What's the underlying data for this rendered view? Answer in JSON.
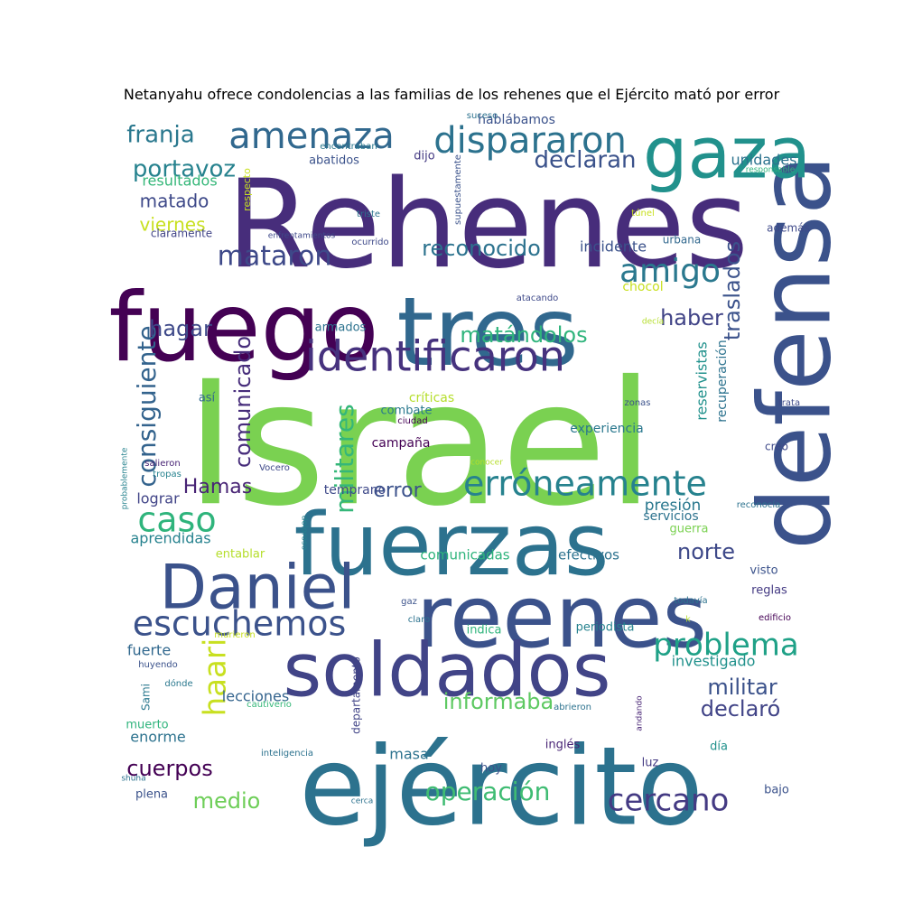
{
  "title": "Netanyahu ofrece condolencias a las familias de los rehenes que el Ejército mató por error",
  "words": [
    {
      "text": "Israel",
      "color": "#7ad151",
      "weight": 100
    },
    {
      "text": "Rehenes",
      "color": "#472d7b",
      "weight": 94
    },
    {
      "text": "ejército",
      "color": "#2c728e",
      "weight": 82
    },
    {
      "text": "defensa",
      "color": "#3b528b",
      "weight": 78
    },
    {
      "text": "fuego",
      "color": "#440154",
      "weight": 75
    },
    {
      "text": "tres",
      "color": "#31688e",
      "weight": 72
    },
    {
      "text": "fuerzas",
      "color": "#2c728e",
      "weight": 70
    },
    {
      "text": "reenes",
      "color": "#3b528b",
      "weight": 68
    },
    {
      "text": "soldados",
      "color": "#414487",
      "weight": 66
    },
    {
      "text": "gaza",
      "color": "#21918c",
      "weight": 58
    },
    {
      "text": "Daniel",
      "color": "#3b528b",
      "weight": 56
    },
    {
      "text": "identificaron",
      "color": "#46327e",
      "weight": 44
    },
    {
      "text": "dispararon",
      "color": "#2c728e",
      "weight": 38
    },
    {
      "text": "amenaza",
      "color": "#31688e",
      "weight": 36
    },
    {
      "text": "erróneamente",
      "color": "#26828e",
      "weight": 36
    },
    {
      "text": "escuchemos",
      "color": "#3b528b",
      "weight": 34
    },
    {
      "text": "amigo",
      "color": "#2a788e",
      "weight": 32
    },
    {
      "text": "problema",
      "color": "#1fa187",
      "weight": 31
    },
    {
      "text": "caso",
      "color": "#2fb47c",
      "weight": 31
    },
    {
      "text": "cercano",
      "color": "#443a83",
      "weight": 30
    },
    {
      "text": "haari",
      "color": "#c8e020",
      "weight": 30
    },
    {
      "text": "mataron",
      "color": "#3e4989",
      "weight": 28
    },
    {
      "text": "operación",
      "color": "#3fbc73",
      "weight": 26
    },
    {
      "text": "militares",
      "color": "#35b779",
      "weight": 26
    },
    {
      "text": "consiguiente",
      "color": "#33638d",
      "weight": 26
    },
    {
      "text": "franja",
      "color": "#2a788e",
      "weight": 26
    },
    {
      "text": "portavoz",
      "color": "#26828e",
      "weight": 26
    },
    {
      "text": "declaran",
      "color": "#3b528b",
      "weight": 25
    },
    {
      "text": "reconocido",
      "color": "#2c728e",
      "weight": 25
    },
    {
      "text": "haber",
      "color": "#414487",
      "weight": 24
    },
    {
      "text": "matándolos",
      "color": "#2fb47c",
      "weight": 23
    },
    {
      "text": "hagar",
      "color": "#3e4989",
      "weight": 23
    },
    {
      "text": "comunicado",
      "color": "#472d7b",
      "weight": 23
    },
    {
      "text": "norte",
      "color": "#3e4989",
      "weight": 23
    },
    {
      "text": "traslados",
      "color": "#3b528b",
      "weight": 23
    },
    {
      "text": "militar",
      "color": "#3b528b",
      "weight": 22
    },
    {
      "text": "informaba",
      "color": "#5ec962",
      "weight": 22
    },
    {
      "text": "declaró",
      "color": "#414487",
      "weight": 22
    },
    {
      "text": "cuerpos",
      "color": "#440154",
      "weight": 22
    },
    {
      "text": "medio",
      "color": "#6ece58",
      "weight": 22
    },
    {
      "text": "Hamas",
      "color": "#482475",
      "weight": 21
    },
    {
      "text": "error",
      "color": "#3b528b",
      "weight": 21
    },
    {
      "text": "matado",
      "color": "#3e4989",
      "weight": 20
    },
    {
      "text": "viernes",
      "color": "#c8e020",
      "weight": 20
    },
    {
      "text": "presión",
      "color": "#2a788e",
      "weight": 18
    },
    {
      "text": "lograr",
      "color": "#414487",
      "weight": 17
    },
    {
      "text": "resultados",
      "color": "#35b779",
      "weight": 17
    },
    {
      "text": "incidente",
      "color": "#3b528b",
      "weight": 17
    },
    {
      "text": "unidades",
      "color": "#2c728e",
      "weight": 17
    },
    {
      "text": "aprendidas",
      "color": "#26828e",
      "weight": 17
    },
    {
      "text": "investigado",
      "color": "#21918c",
      "weight": 17
    },
    {
      "text": "fuerte",
      "color": "#31688e",
      "weight": 16
    },
    {
      "text": "lecciones",
      "color": "#33638d",
      "weight": 16
    },
    {
      "text": "reservistas",
      "color": "#21918c",
      "weight": 16
    },
    {
      "text": "recuperación",
      "color": "#2c728e",
      "weight": 15
    },
    {
      "text": "masa",
      "color": "#2c728e",
      "weight": 16
    },
    {
      "text": "enorme",
      "color": "#2c728e",
      "weight": 16
    },
    {
      "text": "comunicadas",
      "color": "#2fb47c",
      "weight": 15
    },
    {
      "text": "efectivos",
      "color": "#2c728e",
      "weight": 15
    },
    {
      "text": "experiencia",
      "color": "#2a788e",
      "weight": 14
    },
    {
      "text": "hablábamos",
      "color": "#3b528b",
      "weight": 14
    },
    {
      "text": "temprano",
      "color": "#3e4989",
      "weight": 14
    },
    {
      "text": "chocol",
      "color": "#c8e020",
      "weight": 14
    },
    {
      "text": "críticas",
      "color": "#b5de2b",
      "weight": 14
    },
    {
      "text": "campaña",
      "color": "#440154",
      "weight": 14
    },
    {
      "text": "servicios",
      "color": "#2c728e",
      "weight": 14
    },
    {
      "text": "guerra",
      "color": "#7ad151",
      "weight": 13
    },
    {
      "text": "entablar",
      "color": "#b5de2b",
      "weight": 13
    },
    {
      "text": "reglas",
      "color": "#443a83",
      "weight": 13
    },
    {
      "text": "periodista",
      "color": "#26828e",
      "weight": 13
    },
    {
      "text": "indica",
      "color": "#2fb47c",
      "weight": 13
    },
    {
      "text": "hoy",
      "color": "#3b528b",
      "weight": 13
    },
    {
      "text": "plena",
      "color": "#3b528b",
      "weight": 13
    },
    {
      "text": "bajo",
      "color": "#3b528b",
      "weight": 13
    },
    {
      "text": "luz",
      "color": "#443a83",
      "weight": 13
    },
    {
      "text": "inglés",
      "color": "#482475",
      "weight": 13
    },
    {
      "text": "día",
      "color": "#21918c",
      "weight": 13
    },
    {
      "text": "visto",
      "color": "#3b528b",
      "weight": 13
    },
    {
      "text": "muerto",
      "color": "#2fb47c",
      "weight": 13
    },
    {
      "text": "armados",
      "color": "#2c728e",
      "weight": 12
    },
    {
      "text": "combate",
      "color": "#2a788e",
      "weight": 12
    },
    {
      "text": "dijo",
      "color": "#443a83",
      "weight": 13
    },
    {
      "text": "abatidos",
      "color": "#3b528b",
      "weight": 12
    },
    {
      "text": "claramente",
      "color": "#414487",
      "weight": 12
    },
    {
      "text": "así",
      "color": "#31688e",
      "weight": 12
    },
    {
      "text": "creo",
      "color": "#3e4989",
      "weight": 12
    },
    {
      "text": "además",
      "color": "#3e4989",
      "weight": 12
    },
    {
      "text": "urbana",
      "color": "#31688e",
      "weight": 12
    },
    {
      "text": "departamento",
      "color": "#414487",
      "weight": 11
    },
    {
      "text": "Sami",
      "color": "#2a788e",
      "weight": 11
    },
    {
      "text": "respecto",
      "color": "#c8e020",
      "weight": 11
    },
    {
      "text": "supuestamente",
      "color": "#3b528b",
      "weight": 10
    },
    {
      "text": "encontraban",
      "color": "#2a788e",
      "weight": 10
    },
    {
      "text": "suceso",
      "color": "#2c728e",
      "weight": 10
    },
    {
      "text": "triste",
      "color": "#2c728e",
      "weight": 10
    },
    {
      "text": "túnel",
      "color": "#c8e020",
      "weight": 10
    },
    {
      "text": "ocurrido",
      "color": "#3e4989",
      "weight": 10
    },
    {
      "text": "enfrentamientos",
      "color": "#3e4989",
      "weight": 9
    },
    {
      "text": "atacando",
      "color": "#3e4989",
      "weight": 10
    },
    {
      "text": "decía",
      "color": "#b5de2b",
      "weight": 9
    },
    {
      "text": "responsable",
      "color": "#2fb47c",
      "weight": 9
    },
    {
      "text": "zonas",
      "color": "#3b528b",
      "weight": 10
    },
    {
      "text": "trata",
      "color": "#3e4989",
      "weight": 10
    },
    {
      "text": "ciudad",
      "color": "#440154",
      "weight": 10
    },
    {
      "text": "salieron",
      "color": "#482475",
      "weight": 10
    },
    {
      "text": "tropas",
      "color": "#26828e",
      "weight": 10
    },
    {
      "text": "Vocero",
      "color": "#3e4989",
      "weight": 10
    },
    {
      "text": "probablemente",
      "color": "#26828e",
      "weight": 9
    },
    {
      "text": "conocer",
      "color": "#b5de2b",
      "weight": 9
    },
    {
      "text": "reconocía",
      "color": "#2c728e",
      "weight": 10
    },
    {
      "text": "doloroso",
      "color": "#26828e",
      "weight": 9
    },
    {
      "text": "todavía",
      "color": "#2c728e",
      "weight": 10
    },
    {
      "text": "gaz",
      "color": "#3b528b",
      "weight": 10
    },
    {
      "text": "claro",
      "color": "#2c728e",
      "weight": 10
    },
    {
      "text": "k",
      "color": "#b5de2b",
      "weight": 9
    },
    {
      "text": "edificio",
      "color": "#440154",
      "weight": 10
    },
    {
      "text": "murieron",
      "color": "#c8e020",
      "weight": 10
    },
    {
      "text": "huyendo",
      "color": "#3b528b",
      "weight": 10
    },
    {
      "text": "dónde",
      "color": "#2a788e",
      "weight": 10
    },
    {
      "text": "cautiverio",
      "color": "#35b779",
      "weight": 10
    },
    {
      "text": "abrieron",
      "color": "#2c728e",
      "weight": 10
    },
    {
      "text": "andando",
      "color": "#482475",
      "weight": 9
    },
    {
      "text": "inteligencia",
      "color": "#2c728e",
      "weight": 10
    },
    {
      "text": "shuha",
      "color": "#2c728e",
      "weight": 9
    },
    {
      "text": "cerca",
      "color": "#2c728e",
      "weight": 9
    }
  ]
}
